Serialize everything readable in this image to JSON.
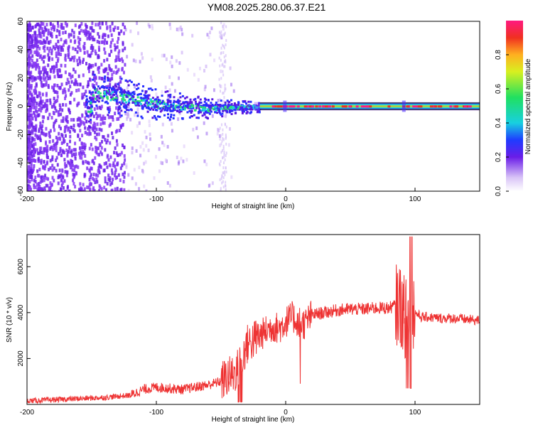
{
  "figure_title": "YM08.2025.280.06.37.E21",
  "chart_data": [
    {
      "type": "heatmap",
      "title": "",
      "xlabel": "Height of straight line (km)",
      "ylabel": "Frequency (Hz)",
      "xlim": [
        -200,
        150
      ],
      "ylim": [
        -60,
        60
      ],
      "x_ticks": [
        "-200",
        "-100",
        "0",
        "100"
      ],
      "y_ticks": [
        "60",
        "40",
        "20",
        "0",
        "-20",
        "-40",
        "-60"
      ],
      "colorbar": {
        "label": "Normalized spectral amplitude",
        "range": [
          0.0,
          1.0
        ],
        "ticks": [
          "0.0",
          "0.2",
          "0.4",
          "0.6",
          "0.8"
        ]
      },
      "ridge": [
        {
          "x": -150,
          "freq": 10,
          "amp": 0.2
        },
        {
          "x": -120,
          "freq": 6,
          "amp": 0.3
        },
        {
          "x": -100,
          "freq": 2,
          "amp": 0.35
        },
        {
          "x": -60,
          "freq": -1,
          "amp": 0.4
        },
        {
          "x": -30,
          "freq": 0,
          "amp": 0.5
        },
        {
          "x": -20,
          "freq": 0,
          "amp": 1.0
        },
        {
          "x": 0,
          "freq": 0,
          "amp": 1.0
        },
        {
          "x": 90,
          "freq": 0,
          "amp": 1.0
        },
        {
          "x": 150,
          "freq": 0,
          "amp": 1.0
        }
      ]
    },
    {
      "type": "line",
      "title": "",
      "xlabel": "Height of straight line (km)",
      "ylabel": "SNR (10 * v/v)",
      "xlim": [
        -200,
        150
      ],
      "ylim": [
        0,
        7400
      ],
      "x_ticks": [
        "-200",
        "-100",
        "0",
        "100"
      ],
      "y_ticks": [
        "2000",
        "4000",
        "6000"
      ],
      "series": [
        {
          "color": "#ee3333",
          "x": [
            -200,
            -180,
            -160,
            -140,
            -120,
            -110,
            -100,
            -90,
            -80,
            -70,
            -60,
            -50,
            -45,
            -40,
            -35,
            -30,
            -25,
            -20,
            -15,
            -10,
            -5,
            0,
            5,
            10,
            15,
            20,
            30,
            40,
            50,
            60,
            70,
            80,
            88,
            92,
            95,
            97,
            98,
            100,
            105,
            110,
            120,
            130,
            140,
            150
          ],
          "y": [
            150,
            200,
            250,
            300,
            400,
            650,
            750,
            700,
            650,
            750,
            850,
            1000,
            1200,
            1300,
            1800,
            2600,
            2800,
            3000,
            3200,
            3400,
            3300,
            3600,
            3800,
            3600,
            3500,
            3900,
            4000,
            4100,
            4150,
            4150,
            4200,
            4200,
            4400,
            3800,
            3700,
            5000,
            4300,
            4000,
            3800,
            3800,
            3750,
            3750,
            3700,
            3650
          ]
        }
      ]
    }
  ]
}
